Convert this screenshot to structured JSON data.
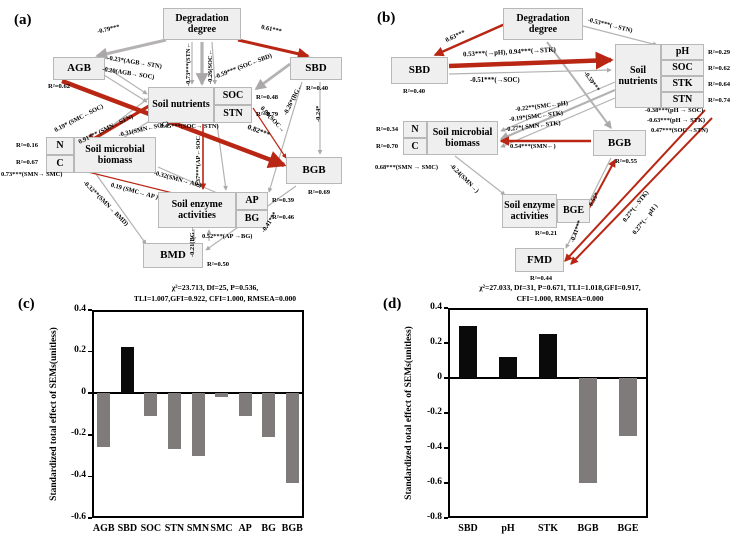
{
  "panels": {
    "a": {
      "tag": "(a)",
      "nodes": {
        "degradation": "Degradation degree",
        "agb": "AGB",
        "sbd": "SBD",
        "soil_nutrients": "Soil nutrients",
        "soc": "SOC",
        "stn": "STN",
        "smb": "Soil microbial biomass",
        "n": "N",
        "c": "C",
        "sea": "Soil enzyme activities",
        "ap": "AP",
        "bg": "BG",
        "bmd": "BMD",
        "bgb": "BGB"
      },
      "r2": {
        "agb": "R²=0.62",
        "sbd": "R²=0.40",
        "soc": "R²=0.48",
        "stn": "R²=0.79",
        "n": "R²=0.16",
        "c": "R²=0.67",
        "ap": "R²=0.39",
        "bg": "R²=0.46",
        "bmd": "R²=0.50",
        "bgb": "R²=0.69"
      },
      "paths": {
        "deg_agb": "-0.79***",
        "deg_sbd": "0.61***",
        "stn_from_deg": "-0.73***(STN←",
        "soc_from_deg": "-0.26(SOC←",
        "agb_stn": "-0.23*(AGB→ STN)",
        "agb_soc": "-0.20(AGB→ SOC)",
        "soc_sbd": "-0.59*** (SOC←SBD)",
        "bg_sbd": "-0.26*(BG←",
        "sbd_bgb": "-0.24*",
        "soc_bgb": "0.09(SOC→",
        "smc_soc": "0.19* (SMC←SOC)",
        "smn_stn": "0.91*** (SMN←STN)",
        "smn_soc": "-0.31(SMN←SOC)",
        "soc_stn": "0.45***(SOC→ STN)",
        "agb_bgb": "0.82***",
        "smn_smc": "0.73***(SMN→ SMC)",
        "smn_ap": "-0.32(SMN→ AP )",
        "smc_ap": "0.19 (SMC→ AP )",
        "ap_soc": "0.37***(AP←SOC",
        "smn_bmd": "-0.32**(SMN→ BMD)",
        "ap_bg": "0.52***(AP →BG)",
        "bg_bmd": "-0.21(BG←",
        "bgb_bmd": "-0.41***"
      },
      "fit_line1": "χ²=23.713, Df=25, P=0.536,",
      "fit_line2": "TLI=1.007,GFI=0.922, CFI=1.000, RMSEA=0.000"
    },
    "b": {
      "tag": "(b)",
      "nodes": {
        "degradation": "Degradation degree",
        "sbd": "SBD",
        "soil_nutrients": "Soil nutrients",
        "ph": "pH",
        "soc": "SOC",
        "stk": "STK",
        "stn": "STN",
        "smb": "Soil microbial biomass",
        "n": "N",
        "c": "C",
        "bgb": "BGB",
        "sea": "Soil enzyme activities",
        "bge": "BGE",
        "fmd": "FMD"
      },
      "r2": {
        "sbd": "R²=0.40",
        "ph": "R²=0.29",
        "soc": "R²=0.62",
        "stk": "R²=0.64",
        "stn": "R²=0.74",
        "n": "R²=0.34",
        "c": "R²=0.70",
        "bgb": "R²=0.55",
        "sea": "R²=0.21",
        "fmd": "R²=0.44"
      },
      "paths": {
        "deg_sbd": "0.63***",
        "deg_stn": "-0.53***(→STN)",
        "sbd_ph_stk": "0.53***(→pH), 0.94***(→STK)",
        "sbd_soc": "-0.51***(→SOC)",
        "deg_bgb": "-0.59***",
        "smc_ph": "-0.22**(SMC←pH)",
        "smc_stk": "-0.19*(SMC←STK)",
        "smn_stk": "-0.27*( SMN←STK)",
        "ph_soc": "-0.38***(pH → SOC)",
        "ph_stk": "-0.63***(pH → STK)",
        "soc_stn": "0.47***(SOC→STN)",
        "smn_bgb": "0.54***(SMN←)",
        "smn_smc": "0.68***(SMN → SMC)",
        "smn_sea": "-0.24(SMN→)",
        "bge_bgb": "0.55*",
        "fmd_stk": "0.27*(←STK)",
        "fmd_ph": "0.27*(← pH )",
        "bgb_fmd": "-0.41***"
      },
      "fit_line1": "χ²=27.033, Df=31, P=0.671, TLI=1.018,GFI=0.917,",
      "fit_line2": "CFI=1.000, RMSEA=0.000"
    }
  },
  "chart_data": [
    {
      "type": "bar",
      "panel_tag": "(c)",
      "title": "",
      "ylabel": "Standardized total effect of SEMs(unitless)",
      "xlabel": "",
      "categories": [
        "AGB",
        "SBD",
        "SOC",
        "STN",
        "SMN",
        "SMC",
        "AP",
        "BG",
        "BGB"
      ],
      "values": [
        -0.26,
        0.22,
        -0.11,
        -0.27,
        -0.3,
        -0.02,
        -0.11,
        -0.21,
        -0.43
      ],
      "bar_colors": [
        "#807b7b",
        "#0a0a0a",
        "#807b7b",
        "#807b7b",
        "#807b7b",
        "#807b7b",
        "#807b7b",
        "#807b7b",
        "#807b7b"
      ],
      "yticks": [
        "0.4",
        "0.2",
        "0",
        "-0.2",
        "-0.4",
        "-0.6"
      ],
      "ylim": [
        -0.6,
        0.4
      ],
      "grid": false,
      "legend": "none"
    },
    {
      "type": "bar",
      "panel_tag": "(d)",
      "title": "",
      "ylabel": "Standardized total effect of  SEMs(unitless)",
      "xlabel": "",
      "categories": [
        "SBD",
        "pH",
        "STK",
        "BGB",
        "BGE"
      ],
      "values": [
        0.3,
        0.12,
        0.25,
        -0.6,
        -0.33
      ],
      "bar_colors": [
        "#0a0a0a",
        "#0a0a0a",
        "#0a0a0a",
        "#807b7b",
        "#807b7b"
      ],
      "yticks": [
        "0.4",
        "0.2",
        "0",
        "-0.2",
        "-0.4",
        "-0.6",
        "-0.8"
      ],
      "ylim": [
        -0.8,
        0.4
      ],
      "grid": false,
      "legend": "none"
    }
  ]
}
